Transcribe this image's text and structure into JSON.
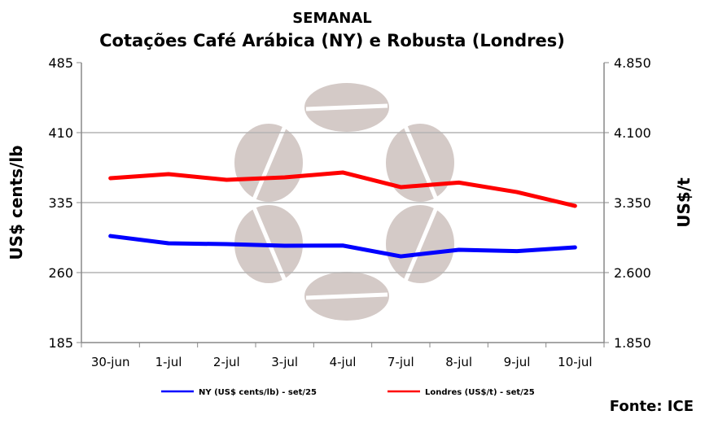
{
  "chart_data": {
    "type": "line",
    "title": "SEMANAL",
    "subtitle": "Cotações Café Arábica (NY) e Robusta (Londres)",
    "ylabel": "US$ cents/lb",
    "ylabel_right": "US$/t",
    "categories": [
      "30-jun",
      "1-jul",
      "2-jul",
      "3-jul",
      "4-jul",
      "7-jul",
      "8-jul",
      "9-jul",
      "10-jul"
    ],
    "ylim": [
      185,
      485
    ],
    "yticks": [
      "485",
      "410",
      "335",
      "260",
      "185"
    ],
    "ylim_right": [
      1850,
      4850
    ],
    "yticks_right": [
      "4.850",
      "4.100",
      "3.350",
      "2.600",
      "1.850"
    ],
    "grid": true,
    "legend_position": "bottom",
    "series": [
      {
        "name": "NY (US$ cents/lb) - set/25",
        "axis": "left",
        "color": "#0000ff",
        "values": [
          299.2,
          291.4,
          290.5,
          288.8,
          289.0,
          277.4,
          284.4,
          283.0,
          287.0
        ]
      },
      {
        "name": "Londres (US$/t) - set/25",
        "axis": "right",
        "color": "#ff0000",
        "values": [
          3612,
          3655,
          3594,
          3620,
          3673,
          3516,
          3565,
          3463,
          3315
        ]
      }
    ]
  },
  "source": "Fonte: ICE"
}
